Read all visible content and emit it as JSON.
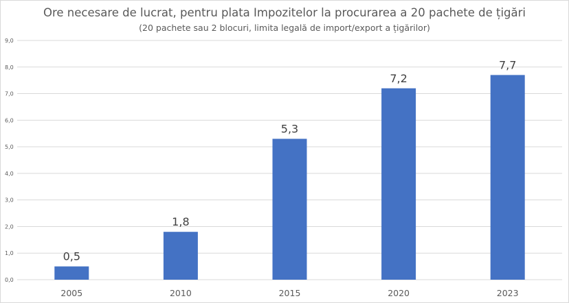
{
  "chart_data": {
    "type": "bar",
    "title": "Ore necesare de lucrat, pentru plata Impozitelor la procurarea a 20 pachete de țigări",
    "subtitle": "(20 pachete sau 2 blocuri, limita legală de import/export a țigărilor)",
    "categories": [
      "2005",
      "2010",
      "2015",
      "2020",
      "2023"
    ],
    "values": [
      0.5,
      1.8,
      5.3,
      7.2,
      7.7
    ],
    "data_labels": [
      "0,5",
      "1,8",
      "5,3",
      "7,2",
      "7,7"
    ],
    "y_ticks": [
      "0,0",
      "1,0",
      "2,0",
      "3,0",
      "4,0",
      "5,0",
      "6,0",
      "7,0",
      "8,0",
      "9,0"
    ],
    "ylim": [
      0,
      9
    ],
    "xlabel": "",
    "ylabel": "",
    "grid": true,
    "bar_color": "#4472C4"
  }
}
